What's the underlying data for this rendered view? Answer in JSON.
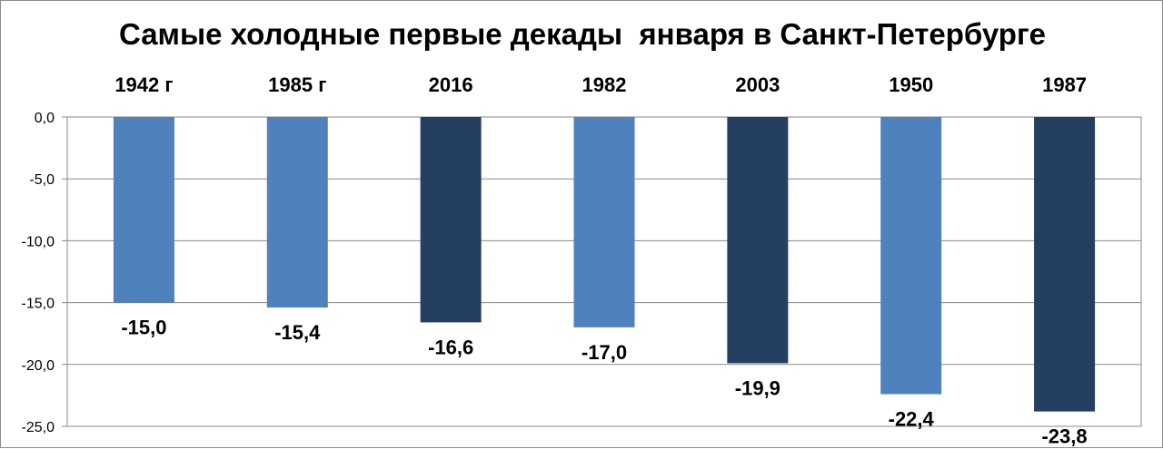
{
  "chart_data": {
    "type": "bar",
    "title": "Самые холодные первые декады  января в Санкт-Петербурге",
    "categories": [
      "1942 г",
      "1985 г",
      "2016",
      "1982",
      "2003",
      "1950",
      "1987"
    ],
    "values": [
      -15.0,
      -15.4,
      -16.6,
      -17.0,
      -19.9,
      -22.4,
      -23.8
    ],
    "value_labels": [
      "-15,0",
      "-15,4",
      "-16,6",
      "-17,0",
      "-19,9",
      "-22,4",
      "-23,8"
    ],
    "bar_colors": [
      "#4f81bd",
      "#4f81bd",
      "#243f60",
      "#4f81bd",
      "#243f60",
      "#4f81bd",
      "#243f60"
    ],
    "yticks": [
      "0,0",
      "-5,0",
      "-10,0",
      "-15,0",
      "-20,0",
      "-25,0"
    ],
    "ylim": [
      -25,
      0
    ],
    "xlabel": "",
    "ylabel": "",
    "grid": true,
    "category_labels_position": "top"
  }
}
